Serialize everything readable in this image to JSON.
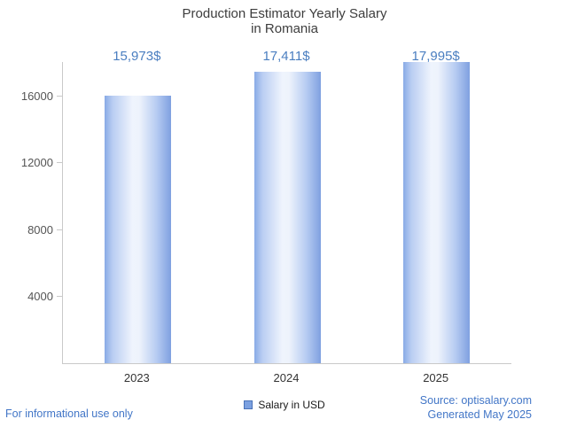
{
  "title": {
    "line1": "Production Estimator Yearly Salary",
    "line2": "in Romania"
  },
  "chart_data": {
    "type": "bar",
    "title": "Production Estimator Yearly Salary in Romania",
    "categories": [
      "2023",
      "2024",
      "2025"
    ],
    "series": [
      {
        "name": "Salary in USD",
        "values": [
          15973,
          17411,
          17995
        ]
      }
    ],
    "value_labels": [
      "15,973$",
      "17,411$",
      "17,995$"
    ],
    "xlabel": "",
    "ylabel": "",
    "ylim": [
      0,
      18000
    ],
    "y_ticks": [
      4000,
      8000,
      12000,
      16000
    ],
    "grid": false,
    "legend_position": "bottom"
  },
  "legend": {
    "label": "Salary in USD",
    "swatch_color": "#7ba0e0"
  },
  "footer": {
    "left": "For informational use only",
    "source": "Source: optisalary.com",
    "generated": "Generated May 2025"
  },
  "colors": {
    "value_label": "#4a7ec0",
    "footer_text": "#4276c7",
    "axis": "#c9c9c9",
    "tick_text": "#555555",
    "title_text": "#3d3d3d",
    "bar_edge": "#7fa0e0",
    "bar_light": "#eff4fd"
  }
}
